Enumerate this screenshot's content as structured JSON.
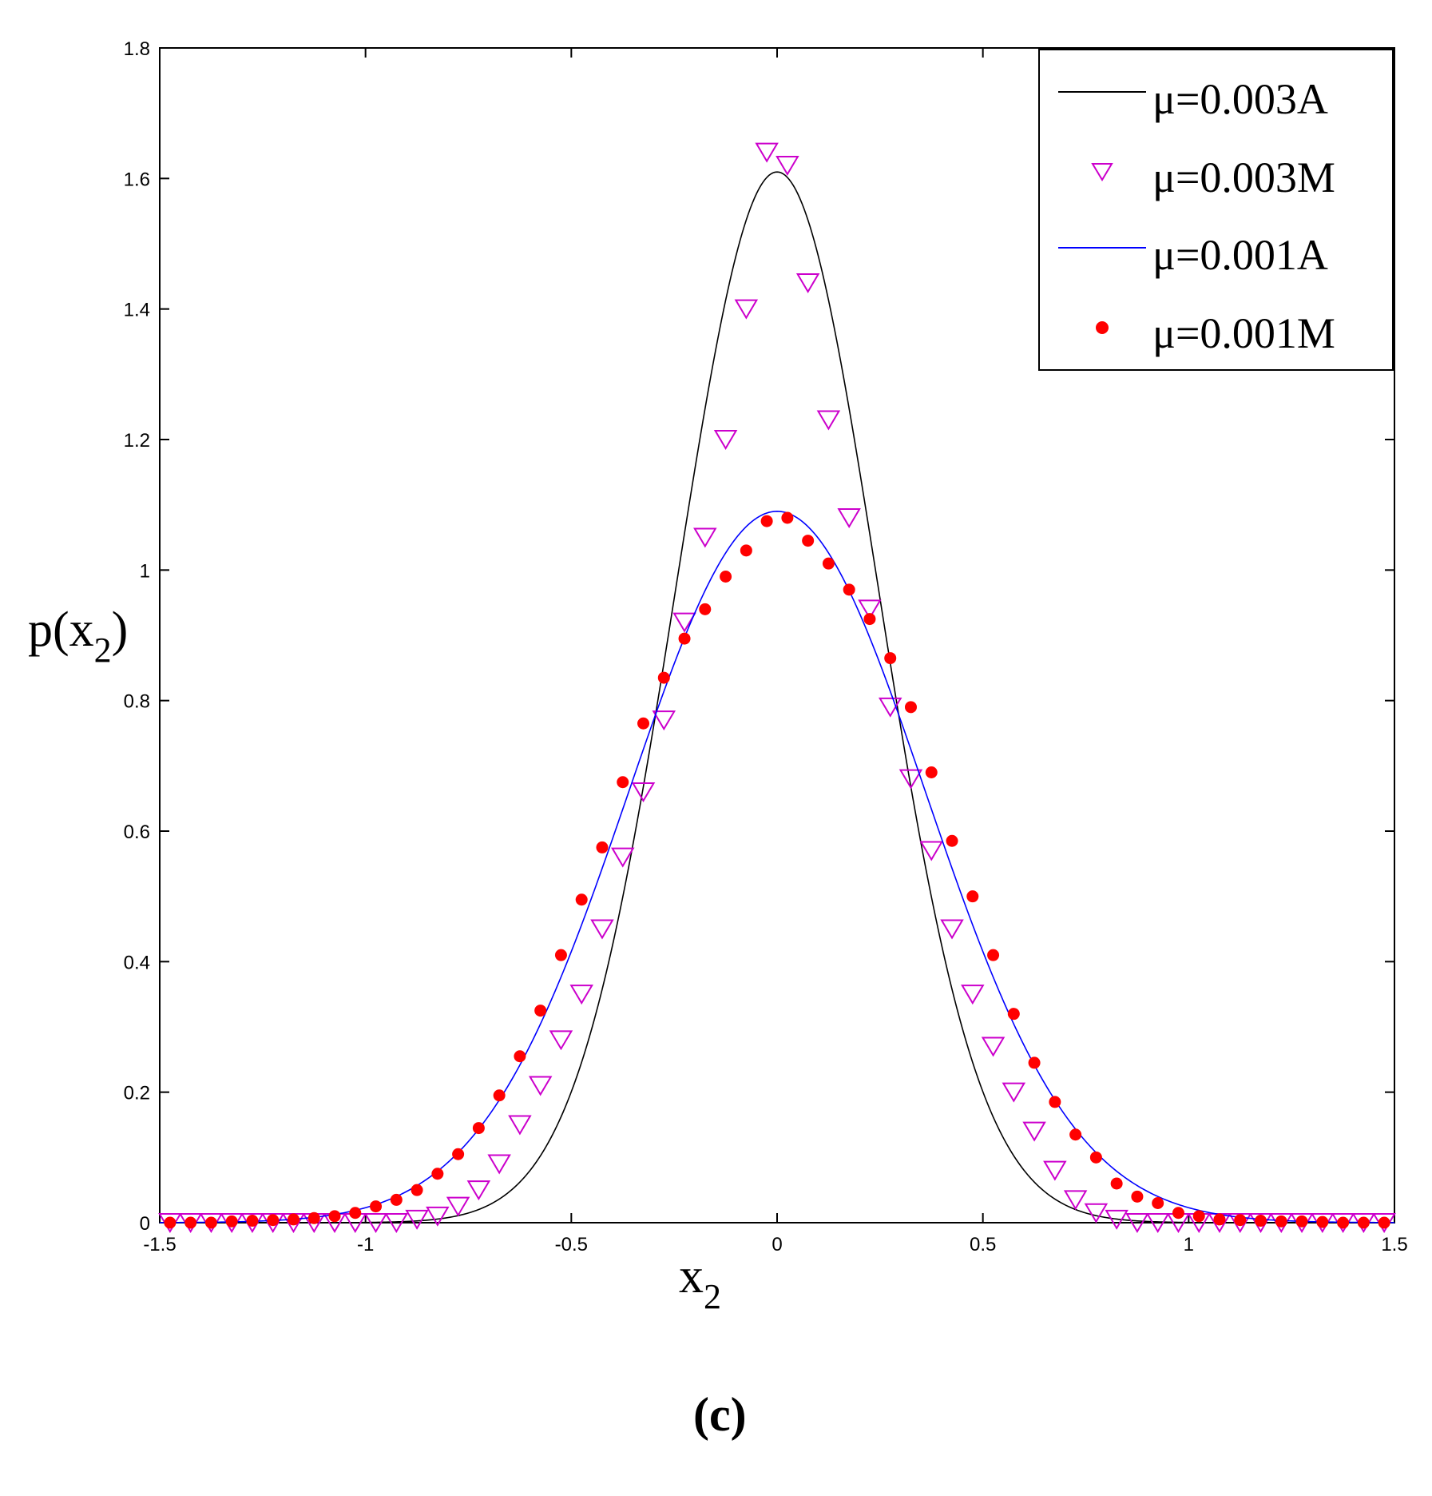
{
  "chart_data": {
    "type": "line",
    "title": "",
    "xlabel": "x",
    "xlabel_sub": "2",
    "ylabel_prefix": "p(x",
    "ylabel_sub": "2",
    "ylabel_suffix": ")",
    "xlim": [
      -1.5,
      1.5
    ],
    "ylim": [
      0,
      1.8
    ],
    "xticks": [
      -1.5,
      -1,
      -0.5,
      0,
      0.5,
      1,
      1.5
    ],
    "xtick_labels": [
      "-1.5",
      "-1",
      "-0.5",
      "0",
      "0.5",
      "1",
      "1.5"
    ],
    "yticks": [
      0,
      0.2,
      0.4,
      0.6,
      0.8,
      1,
      1.2,
      1.4,
      1.6,
      1.8
    ],
    "ytick_labels": [
      "0",
      "0.2",
      "0.4",
      "0.6",
      "0.8",
      "1",
      "1.2",
      "1.4",
      "1.6",
      "1.8"
    ],
    "grid": false,
    "legend_position": "top-right",
    "caption": "(c)",
    "series": [
      {
        "name": "μ=0.003A",
        "style": "line",
        "color": "#000000",
        "peak": 1.61,
        "center": 0.0,
        "sigma": 0.245,
        "shape": "gaussian"
      },
      {
        "name": "μ=0.003M",
        "style": "marker-triangle-down",
        "color": "#cc00cc",
        "x": [
          -1.475,
          -1.425,
          -1.375,
          -1.325,
          -1.275,
          -1.225,
          -1.175,
          -1.125,
          -1.075,
          -1.025,
          -0.975,
          -0.925,
          -0.875,
          -0.825,
          -0.775,
          -0.725,
          -0.675,
          -0.625,
          -0.575,
          -0.525,
          -0.475,
          -0.425,
          -0.375,
          -0.325,
          -0.275,
          -0.225,
          -0.175,
          -0.125,
          -0.075,
          -0.025,
          0.025,
          0.075,
          0.125,
          0.175,
          0.225,
          0.275,
          0.325,
          0.375,
          0.425,
          0.475,
          0.525,
          0.575,
          0.625,
          0.675,
          0.725,
          0.775,
          0.825,
          0.875,
          0.925,
          0.975,
          1.025,
          1.075,
          1.125,
          1.175,
          1.225,
          1.275,
          1.325,
          1.375,
          1.425,
          1.475
        ],
        "y": [
          0,
          0,
          0,
          0,
          0,
          0,
          0,
          0,
          0,
          0,
          0,
          0,
          0.005,
          0.01,
          0.025,
          0.05,
          0.09,
          0.15,
          0.21,
          0.28,
          0.35,
          0.45,
          0.56,
          0.66,
          0.77,
          0.92,
          1.05,
          1.2,
          1.4,
          1.64,
          1.62,
          1.44,
          1.23,
          1.08,
          0.94,
          0.79,
          0.68,
          0.57,
          0.45,
          0.35,
          0.27,
          0.2,
          0.14,
          0.08,
          0.035,
          0.015,
          0.005,
          0,
          0,
          0,
          0,
          0,
          0,
          0,
          0,
          0,
          0,
          0,
          0,
          0
        ]
      },
      {
        "name": "μ=0.001A",
        "style": "line",
        "color": "#0000ff",
        "peak": 1.09,
        "center": 0.0,
        "sigma": 0.36,
        "shape": "gaussian"
      },
      {
        "name": "μ=0.001M",
        "style": "marker-dot",
        "color": "#ff0000",
        "x": [
          -1.475,
          -1.425,
          -1.375,
          -1.325,
          -1.275,
          -1.225,
          -1.175,
          -1.125,
          -1.075,
          -1.025,
          -0.975,
          -0.925,
          -0.875,
          -0.825,
          -0.775,
          -0.725,
          -0.675,
          -0.625,
          -0.575,
          -0.525,
          -0.475,
          -0.425,
          -0.375,
          -0.325,
          -0.275,
          -0.225,
          -0.175,
          -0.125,
          -0.075,
          -0.025,
          0.025,
          0.075,
          0.125,
          0.175,
          0.225,
          0.275,
          0.325,
          0.375,
          0.425,
          0.475,
          0.525,
          0.575,
          0.625,
          0.675,
          0.725,
          0.775,
          0.825,
          0.875,
          0.925,
          0.975,
          1.025,
          1.075,
          1.125,
          1.175,
          1.225,
          1.275,
          1.325,
          1.375,
          1.425,
          1.475
        ],
        "y": [
          0,
          0,
          0,
          0.002,
          0.003,
          0.004,
          0.005,
          0.007,
          0.01,
          0.015,
          0.025,
          0.035,
          0.05,
          0.075,
          0.105,
          0.145,
          0.195,
          0.255,
          0.325,
          0.41,
          0.495,
          0.575,
          0.675,
          0.765,
          0.835,
          0.895,
          0.94,
          0.99,
          1.03,
          1.075,
          1.08,
          1.045,
          1.01,
          0.97,
          0.925,
          0.865,
          0.79,
          0.69,
          0.585,
          0.5,
          0.41,
          0.32,
          0.245,
          0.185,
          0.135,
          0.1,
          0.06,
          0.04,
          0.03,
          0.015,
          0.01,
          0.005,
          0.004,
          0.003,
          0.002,
          0.002,
          0.001,
          0,
          0,
          0
        ]
      }
    ]
  }
}
